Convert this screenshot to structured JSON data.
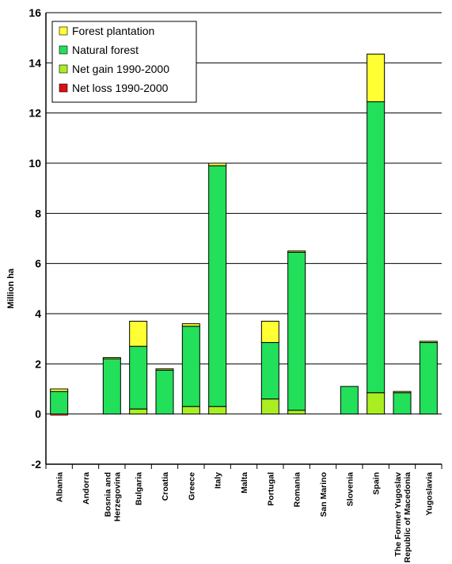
{
  "chart_data": {
    "type": "bar",
    "stacked": true,
    "ylabel": "Million ha",
    "xlabel": "",
    "ylim": [
      -2,
      16
    ],
    "yticks": [
      -2,
      0,
      2,
      4,
      6,
      8,
      10,
      12,
      14,
      16
    ],
    "grid": true,
    "legend_position": "top-left",
    "categories": [
      "Albania",
      "Andorra",
      "Bosnia and Herzegovina",
      "Bulgaria",
      "Croatia",
      "Greece",
      "Italy",
      "Malta",
      "Portugal",
      "Romania",
      "San Marino",
      "Slovenia",
      "Spain",
      "The Former Yugoslav Republic of Macedonia",
      "Yugoslavia"
    ],
    "category_lines": [
      [
        "Albania"
      ],
      [
        "Andorra"
      ],
      [
        "Bosnia and",
        "Herzegovina"
      ],
      [
        "Bulgaria"
      ],
      [
        "Croatia"
      ],
      [
        "Greece"
      ],
      [
        "Italy"
      ],
      [
        "Malta"
      ],
      [
        "Portugal"
      ],
      [
        "Romania"
      ],
      [
        "San Marino"
      ],
      [
        "Slovenia"
      ],
      [
        "Spain"
      ],
      [
        "The Former Yugoslav",
        "Republic of Macedonia"
      ],
      [
        "Yugoslavia"
      ]
    ],
    "series": [
      {
        "name": "Forest plantation",
        "color": "#ffff33",
        "values": [
          0.1,
          0,
          0.05,
          1.0,
          0.05,
          0.1,
          0.1,
          0,
          0.85,
          0.05,
          0,
          0,
          1.9,
          0.05,
          0.05
        ]
      },
      {
        "name": "Natural forest",
        "color": "#22e05a",
        "values": [
          0.9,
          0,
          2.2,
          2.5,
          1.75,
          3.2,
          9.6,
          0,
          2.25,
          6.3,
          0,
          1.1,
          11.6,
          0.85,
          2.85
        ]
      },
      {
        "name": "Net gain 1990-2000",
        "color": "#aaee22",
        "values": [
          0,
          0,
          0,
          0.2,
          0,
          0.3,
          0.3,
          0,
          0.6,
          0.15,
          0,
          0,
          0.85,
          0,
          0
        ]
      },
      {
        "name": "Net loss 1990-2000",
        "color": "#dd1111",
        "values": [
          -0.05,
          0,
          0,
          0,
          0,
          0,
          0,
          0,
          0,
          0,
          0,
          0,
          0,
          0,
          0
        ]
      }
    ]
  }
}
